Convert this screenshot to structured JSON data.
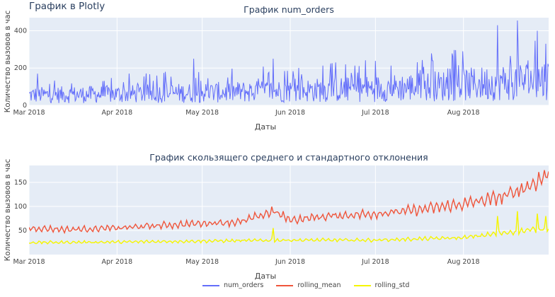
{
  "page": {
    "heading": "График в Plotly"
  },
  "colors": {
    "num_orders": "#636efa",
    "rolling_mean": "#ef553b",
    "rolling_std": "#f5f500",
    "plot_bg": "#e5ecf6"
  },
  "chart_data": [
    {
      "type": "line",
      "title": "График num_orders",
      "xlabel": "Даты",
      "ylabel": "Количество вызовов в час",
      "x_range": [
        "2018-03-01",
        "2018-08-31"
      ],
      "ylim": [
        0,
        470
      ],
      "yticks": [
        "0",
        "200",
        "400"
      ],
      "xticks": [
        "Mar 2018",
        "Apr 2018",
        "May 2018",
        "Jun 2018",
        "Jul 2018",
        "Aug 2018"
      ],
      "grid": true,
      "series": [
        {
          "name": "num_orders",
          "color": "#636efa",
          "trend": {
            "x": [
              "2018-03-01",
              "2018-04-01",
              "2018-05-01",
              "2018-06-01",
              "2018-07-01",
              "2018-08-01",
              "2018-08-31"
            ],
            "mean": [
              55,
              60,
              68,
              78,
              90,
              110,
              140
            ]
          },
          "peaks": [
            {
              "x": "2018-03-04",
              "y": 170
            },
            {
              "x": "2018-04-18",
              "y": 180
            },
            {
              "x": "2018-04-28",
              "y": 250
            },
            {
              "x": "2018-05-26",
              "y": 250
            },
            {
              "x": "2018-06-17",
              "y": 230
            },
            {
              "x": "2018-07-21",
              "y": 240
            },
            {
              "x": "2018-08-13",
              "y": 430
            },
            {
              "x": "2018-08-20",
              "y": 455
            },
            {
              "x": "2018-08-27",
              "y": 400
            },
            {
              "x": "2018-08-30",
              "y": 330
            }
          ]
        }
      ]
    },
    {
      "type": "line",
      "title": "График скользящего среднего и стандартного отклонения",
      "xlabel": "Даты",
      "ylabel": "Количество вызовов в час",
      "x_range": [
        "2018-03-01",
        "2018-08-31"
      ],
      "ylim": [
        0,
        185
      ],
      "yticks": [
        "50",
        "100",
        "150"
      ],
      "xticks": [
        "Mar 2018",
        "Apr 2018",
        "May 2018",
        "Jun 2018",
        "Jul 2018",
        "Aug 2018"
      ],
      "grid": true,
      "series": [
        {
          "name": "rolling_mean",
          "color": "#ef553b",
          "x": [
            "2018-03-01",
            "2018-03-15",
            "2018-04-01",
            "2018-04-15",
            "2018-05-01",
            "2018-05-15",
            "2018-05-26",
            "2018-06-01",
            "2018-06-15",
            "2018-07-01",
            "2018-07-15",
            "2018-08-01",
            "2018-08-15",
            "2018-08-25",
            "2018-08-31"
          ],
          "y": [
            55,
            52,
            55,
            60,
            65,
            68,
            90,
            72,
            80,
            85,
            92,
            105,
            120,
            145,
            168
          ]
        },
        {
          "name": "rolling_std",
          "color": "#f5f500",
          "x": [
            "2018-03-01",
            "2018-04-01",
            "2018-05-01",
            "2018-06-01",
            "2018-07-01",
            "2018-08-01",
            "2018-08-15",
            "2018-08-31"
          ],
          "y": [
            25,
            26,
            28,
            30,
            30,
            35,
            45,
            55
          ],
          "spikes": [
            {
              "x": "2018-05-26",
              "y": 55
            },
            {
              "x": "2018-08-13",
              "y": 80
            },
            {
              "x": "2018-08-20",
              "y": 90
            },
            {
              "x": "2018-08-27",
              "y": 85
            },
            {
              "x": "2018-08-30",
              "y": 80
            }
          ]
        }
      ]
    }
  ],
  "legend": [
    {
      "name": "num_orders",
      "color": "#636efa"
    },
    {
      "name": "rolling_mean",
      "color": "#ef553b"
    },
    {
      "name": "rolling_std",
      "color": "#f5f500"
    }
  ]
}
